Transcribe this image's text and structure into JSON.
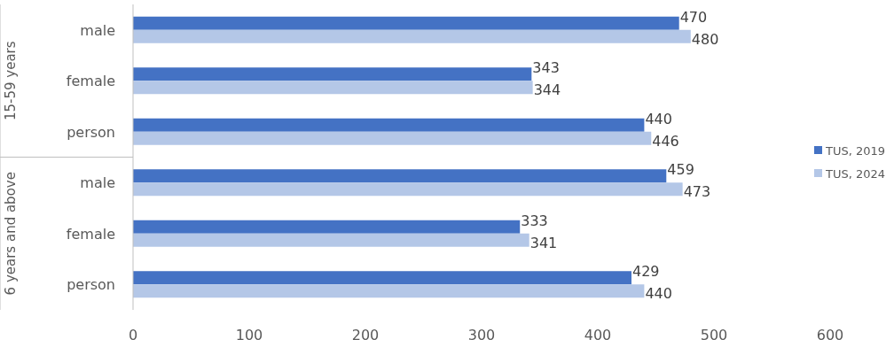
{
  "chart_data": {
    "type": "bar",
    "orientation": "horizontal",
    "categories": [
      "male",
      "female",
      "person",
      "male",
      "female",
      "person"
    ],
    "series": [
      {
        "name": "TUS, 2019",
        "color": "#4472c4",
        "values": [
          470,
          343,
          440,
          459,
          333,
          429
        ]
      },
      {
        "name": "TUS, 2024",
        "color": "#b4c7e7",
        "values": [
          480,
          344,
          446,
          473,
          341,
          440
        ]
      }
    ],
    "xlim": [
      0,
      600
    ],
    "xticks": [
      0,
      100,
      200,
      300,
      400,
      500,
      600
    ],
    "data_labels": true,
    "legend": "right",
    "grid": false,
    "annotations": [
      "15-59 years",
      "6 years and above"
    ]
  }
}
